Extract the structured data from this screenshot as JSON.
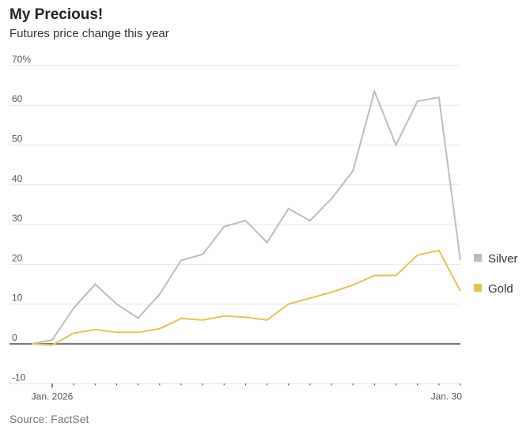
{
  "title": "My Precious!",
  "subtitle": "Futures price change this year",
  "source": "Source: FactSet",
  "chart_data": {
    "type": "line",
    "title": "My Precious!",
    "subtitle": "Futures price change this year",
    "ylim": [
      -10,
      70
    ],
    "yticks": [
      -10,
      0,
      10,
      20,
      30,
      40,
      50,
      60,
      70
    ],
    "ytick_labels": [
      "-10",
      "0",
      "10",
      "20",
      "30",
      "40",
      "50",
      "60",
      "70%"
    ],
    "x": [
      "2025-12-31",
      "2026-01-02",
      "2026-01-05",
      "2026-01-06",
      "2026-01-07",
      "2026-01-08",
      "2026-01-09",
      "2026-01-12",
      "2026-01-13",
      "2026-01-14",
      "2026-01-15",
      "2026-01-16",
      "2026-01-20",
      "2026-01-21",
      "2026-01-22",
      "2026-01-23",
      "2026-01-26",
      "2026-01-27",
      "2026-01-28",
      "2026-01-29",
      "2026-01-30"
    ],
    "xtick_labels": [
      {
        "x": "2026-01-02",
        "label": "Jan. 2026"
      },
      {
        "x": "2026-01-30",
        "label": "Jan. 30"
      }
    ],
    "grid": true,
    "legend": "right",
    "series": [
      {
        "name": "Silver",
        "color": "#bdbdbd",
        "values": [
          0,
          1,
          9,
          15,
          10,
          6.5,
          12.5,
          21,
          22.5,
          29.5,
          31,
          25.5,
          34,
          31,
          36.5,
          43.5,
          63.5,
          50,
          61,
          62,
          21
        ]
      },
      {
        "name": "Gold",
        "color": "#e1c553",
        "values": [
          0,
          -0.3,
          2.7,
          3.6,
          2.9,
          2.9,
          3.8,
          6.4,
          6.0,
          7.0,
          6.7,
          6.0,
          10,
          11.5,
          13,
          14.8,
          17.2,
          17.2,
          22.3,
          23.5,
          13.3
        ]
      }
    ]
  }
}
